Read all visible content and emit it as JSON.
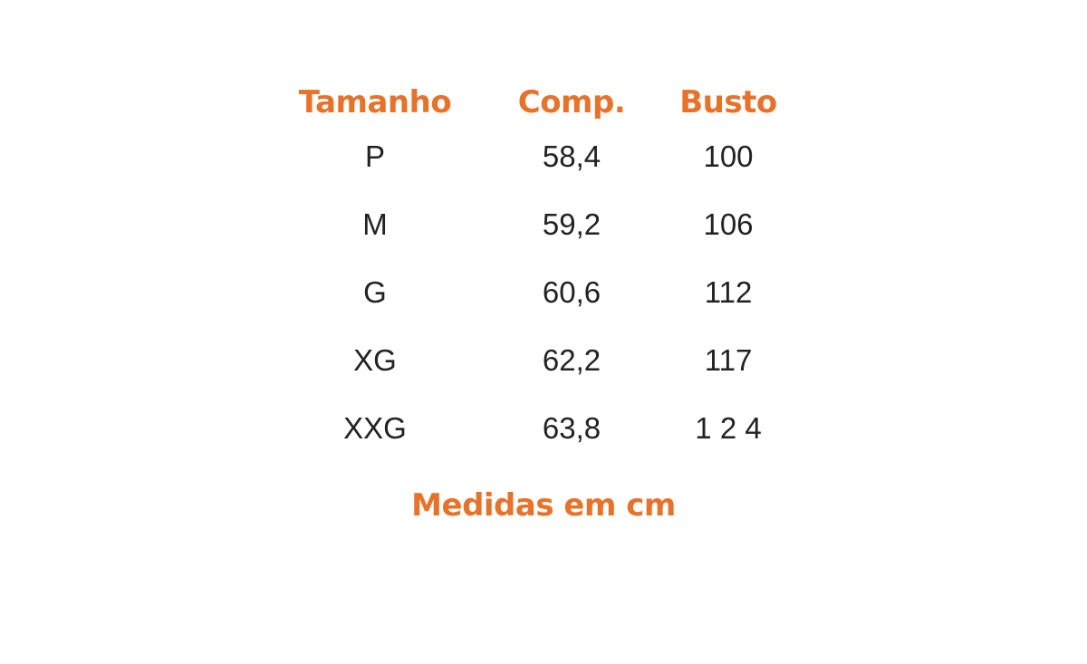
{
  "accent_color": "#e8722a",
  "headers": [
    "Tamanho",
    "Comp.",
    "Busto"
  ],
  "rows": [
    [
      "P",
      "58,4",
      "100"
    ],
    [
      "M",
      "59,2",
      "106"
    ],
    [
      "G",
      "60,6",
      "112"
    ],
    [
      "XG",
      "62,2",
      "117"
    ],
    [
      "XXG",
      "63,8",
      "1 2 4"
    ]
  ],
  "footer": "Medidas em cm"
}
